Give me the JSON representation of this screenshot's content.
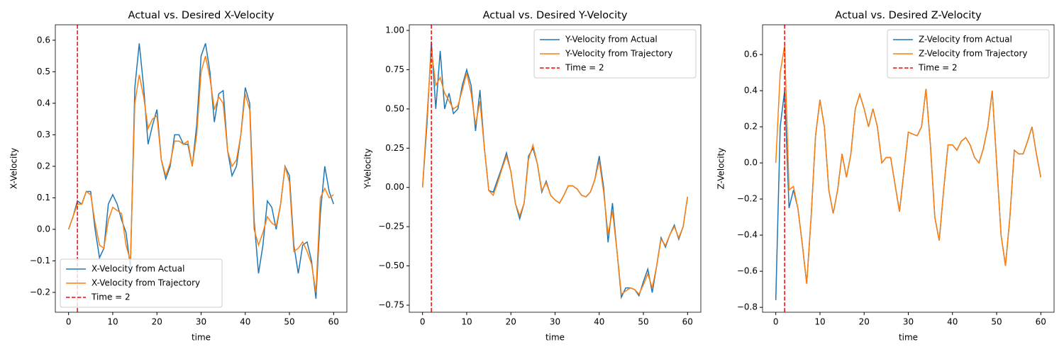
{
  "chart_data": [
    {
      "type": "line",
      "title": "Actual vs. Desired X-Velocity",
      "xlabel": "time",
      "ylabel": "X-Velocity",
      "x": [
        0,
        1,
        2,
        3,
        4,
        5,
        6,
        7,
        8,
        9,
        10,
        11,
        12,
        13,
        14,
        15,
        16,
        17,
        18,
        19,
        20,
        21,
        22,
        23,
        24,
        25,
        26,
        27,
        28,
        29,
        30,
        31,
        32,
        33,
        34,
        35,
        36,
        37,
        38,
        39,
        40,
        41,
        42,
        43,
        44,
        45,
        46,
        47,
        48,
        49,
        50,
        51,
        52,
        53,
        54,
        55,
        56,
        57,
        58,
        59,
        60
      ],
      "series": [
        {
          "name": "X-Velocity from Actual",
          "color": "#1f77b4",
          "values": [
            0,
            0.04,
            0.09,
            0.08,
            0.12,
            0.12,
            0.0,
            -0.09,
            -0.06,
            0.08,
            0.11,
            0.08,
            0.03,
            -0.01,
            -0.12,
            0.45,
            0.59,
            0.45,
            0.27,
            0.33,
            0.38,
            0.22,
            0.16,
            0.2,
            0.3,
            0.3,
            0.27,
            0.27,
            0.2,
            0.33,
            0.55,
            0.59,
            0.5,
            0.34,
            0.43,
            0.44,
            0.25,
            0.17,
            0.2,
            0.3,
            0.45,
            0.4,
            0.03,
            -0.14,
            -0.05,
            0.09,
            0.07,
            0.0,
            0.08,
            0.2,
            0.17,
            -0.05,
            -0.14,
            -0.05,
            -0.04,
            -0.1,
            -0.22,
            0.05,
            0.2,
            0.12,
            0.08
          ]
        },
        {
          "name": "X-Velocity from Trajectory",
          "color": "#ff7f0e",
          "values": [
            0,
            0.04,
            0.08,
            0.08,
            0.12,
            0.11,
            0.02,
            -0.05,
            -0.06,
            0.03,
            0.07,
            0.06,
            0.05,
            -0.05,
            -0.1,
            0.4,
            0.49,
            0.42,
            0.32,
            0.35,
            0.36,
            0.22,
            0.17,
            0.21,
            0.28,
            0.28,
            0.27,
            0.28,
            0.2,
            0.3,
            0.5,
            0.55,
            0.48,
            0.38,
            0.42,
            0.4,
            0.25,
            0.2,
            0.22,
            0.3,
            0.43,
            0.38,
            0.0,
            -0.05,
            -0.01,
            0.04,
            0.02,
            0.01,
            0.08,
            0.2,
            0.15,
            -0.07,
            -0.06,
            -0.04,
            -0.07,
            -0.11,
            -0.2,
            0.1,
            0.13,
            0.1,
            0.11
          ]
        }
      ],
      "vline": {
        "x": 2,
        "name": "Time = 2",
        "color": "#ff0000"
      },
      "xlim": [
        -3,
        63
      ],
      "ylim": [
        -0.263,
        0.649
      ],
      "xticks": [
        0,
        10,
        20,
        30,
        40,
        50,
        60
      ],
      "yticks": [
        {
          "value": -0.2,
          "label": "−0.2"
        },
        {
          "value": -0.1,
          "label": "−0.1"
        },
        {
          "value": 0,
          "label": "0.0"
        },
        0.1,
        0.2,
        0.3,
        0.4,
        0.5,
        0.6
      ],
      "legend": "lower-left"
    },
    {
      "type": "line",
      "title": "Actual vs. Desired Y-Velocity",
      "xlabel": "time",
      "ylabel": "Y-Velocity",
      "x": [
        0,
        1,
        2,
        3,
        4,
        5,
        6,
        7,
        8,
        9,
        10,
        11,
        12,
        13,
        14,
        15,
        16,
        17,
        18,
        19,
        20,
        21,
        22,
        23,
        24,
        25,
        26,
        27,
        28,
        29,
        30,
        31,
        32,
        33,
        34,
        35,
        36,
        37,
        38,
        39,
        40,
        41,
        42,
        43,
        44,
        45,
        46,
        47,
        48,
        49,
        50,
        51,
        52,
        53,
        54,
        55,
        56,
        57,
        58,
        59,
        60
      ],
      "series": [
        {
          "name": "Y-Velocity from Actual",
          "color": "#1f77b4",
          "values": [
            0,
            0.4,
            0.93,
            0.5,
            0.87,
            0.5,
            0.6,
            0.47,
            0.5,
            0.65,
            0.75,
            0.65,
            0.36,
            0.62,
            0.25,
            -0.02,
            -0.03,
            0.05,
            0.13,
            0.22,
            0.1,
            -0.1,
            -0.2,
            -0.1,
            0.2,
            0.25,
            0.15,
            -0.03,
            0.04,
            -0.05,
            -0.08,
            -0.1,
            -0.05,
            0.01,
            0.01,
            -0.01,
            -0.05,
            -0.06,
            -0.03,
            0.05,
            0.2,
            0.0,
            -0.35,
            -0.1,
            -0.4,
            -0.7,
            -0.64,
            -0.64,
            -0.65,
            -0.69,
            -0.6,
            -0.52,
            -0.67,
            -0.5,
            -0.32,
            -0.38,
            -0.3,
            -0.24,
            -0.33,
            -0.25,
            -0.06
          ]
        },
        {
          "name": "Y-Velocity from Trajectory",
          "color": "#ff7f0e",
          "values": [
            0,
            0.45,
            0.88,
            0.65,
            0.7,
            0.6,
            0.55,
            0.5,
            0.52,
            0.62,
            0.73,
            0.6,
            0.4,
            0.55,
            0.25,
            -0.02,
            -0.05,
            0.03,
            0.12,
            0.2,
            0.1,
            -0.1,
            -0.18,
            -0.1,
            0.18,
            0.27,
            0.15,
            -0.02,
            0.03,
            -0.05,
            -0.08,
            -0.1,
            -0.05,
            0.01,
            0.01,
            -0.01,
            -0.05,
            -0.06,
            -0.03,
            0.05,
            0.17,
            -0.03,
            -0.3,
            -0.15,
            -0.4,
            -0.68,
            -0.66,
            -0.64,
            -0.65,
            -0.68,
            -0.62,
            -0.55,
            -0.64,
            -0.5,
            -0.33,
            -0.37,
            -0.3,
            -0.25,
            -0.32,
            -0.25,
            -0.06
          ]
        }
      ],
      "vline": {
        "x": 2,
        "name": "Time = 2",
        "color": "#ff0000"
      },
      "xlim": [
        -3,
        63
      ],
      "ylim": [
        -0.795,
        1.036
      ],
      "xticks": [
        0,
        10,
        20,
        30,
        40,
        50,
        60
      ],
      "yticks": [
        {
          "value": -0.75,
          "label": "−0.75"
        },
        {
          "value": -0.5,
          "label": "−0.50"
        },
        {
          "value": -0.25,
          "label": "−0.25"
        },
        {
          "value": 0,
          "label": "0.00"
        },
        0.25,
        {
          "value": 0.5,
          "label": "0.50"
        },
        0.75,
        {
          "value": 1,
          "label": "1.00"
        }
      ],
      "legend": "upper-right"
    },
    {
      "type": "line",
      "title": "Actual vs. Desired Z-Velocity",
      "xlabel": "time",
      "ylabel": "Z-Velocity",
      "x": [
        0,
        1,
        2,
        3,
        4,
        5,
        6,
        7,
        8,
        9,
        10,
        11,
        12,
        13,
        14,
        15,
        16,
        17,
        18,
        19,
        20,
        21,
        22,
        23,
        24,
        25,
        26,
        27,
        28,
        29,
        30,
        31,
        32,
        33,
        34,
        35,
        36,
        37,
        38,
        39,
        40,
        41,
        42,
        43,
        44,
        45,
        46,
        47,
        48,
        49,
        50,
        51,
        52,
        53,
        54,
        55,
        56,
        57,
        58,
        59,
        60
      ],
      "series": [
        {
          "name": "Z-Velocity from Actual",
          "color": "#1f77b4",
          "values": [
            -0.76,
            0.2,
            0.4,
            -0.25,
            -0.15,
            -0.25,
            -0.45,
            -0.67,
            -0.3,
            0.15,
            0.35,
            0.2,
            -0.15,
            -0.28,
            -0.15,
            0.05,
            -0.08,
            0.05,
            0.3,
            0.38,
            0.3,
            0.2,
            0.3,
            0.2,
            0.0,
            0.03,
            0.03,
            -0.12,
            -0.27,
            -0.05,
            0.17,
            0.16,
            0.15,
            0.2,
            0.41,
            0.1,
            -0.3,
            -0.43,
            -0.15,
            0.1,
            0.1,
            0.07,
            0.12,
            0.14,
            0.1,
            0.03,
            0.0,
            0.08,
            0.2,
            0.4,
            0.0,
            -0.4,
            -0.57,
            -0.3,
            0.07,
            0.05,
            0.05,
            0.12,
            0.2,
            0.05,
            -0.08
          ]
        },
        {
          "name": "Z-Velocity from Trajectory",
          "color": "#ff7f0e",
          "values": [
            0,
            0.5,
            0.65,
            -0.15,
            -0.13,
            -0.25,
            -0.45,
            -0.67,
            -0.3,
            0.15,
            0.35,
            0.2,
            -0.15,
            -0.28,
            -0.15,
            0.05,
            -0.08,
            0.05,
            0.3,
            0.38,
            0.3,
            0.2,
            0.3,
            0.2,
            0.0,
            0.03,
            0.03,
            -0.12,
            -0.27,
            -0.05,
            0.17,
            0.16,
            0.15,
            0.2,
            0.41,
            0.1,
            -0.3,
            -0.43,
            -0.15,
            0.1,
            0.1,
            0.07,
            0.12,
            0.14,
            0.1,
            0.03,
            0.0,
            0.08,
            0.2,
            0.4,
            0.0,
            -0.4,
            -0.57,
            -0.3,
            0.07,
            0.05,
            0.05,
            0.12,
            0.2,
            0.05,
            -0.08
          ]
        }
      ],
      "vline": {
        "x": 2,
        "name": "Time = 2",
        "color": "#ff0000"
      },
      "xlim": [
        -3,
        63
      ],
      "ylim": [
        -0.827,
        0.765
      ],
      "xticks": [
        0,
        10,
        20,
        30,
        40,
        50,
        60
      ],
      "yticks": [
        {
          "value": -0.8,
          "label": "−0.8"
        },
        {
          "value": -0.6,
          "label": "−0.6"
        },
        {
          "value": -0.4,
          "label": "−0.4"
        },
        {
          "value": -0.2,
          "label": "−0.2"
        },
        {
          "value": 0,
          "label": "0.0"
        },
        0.2,
        0.4,
        0.6
      ],
      "legend": "upper-right"
    }
  ]
}
